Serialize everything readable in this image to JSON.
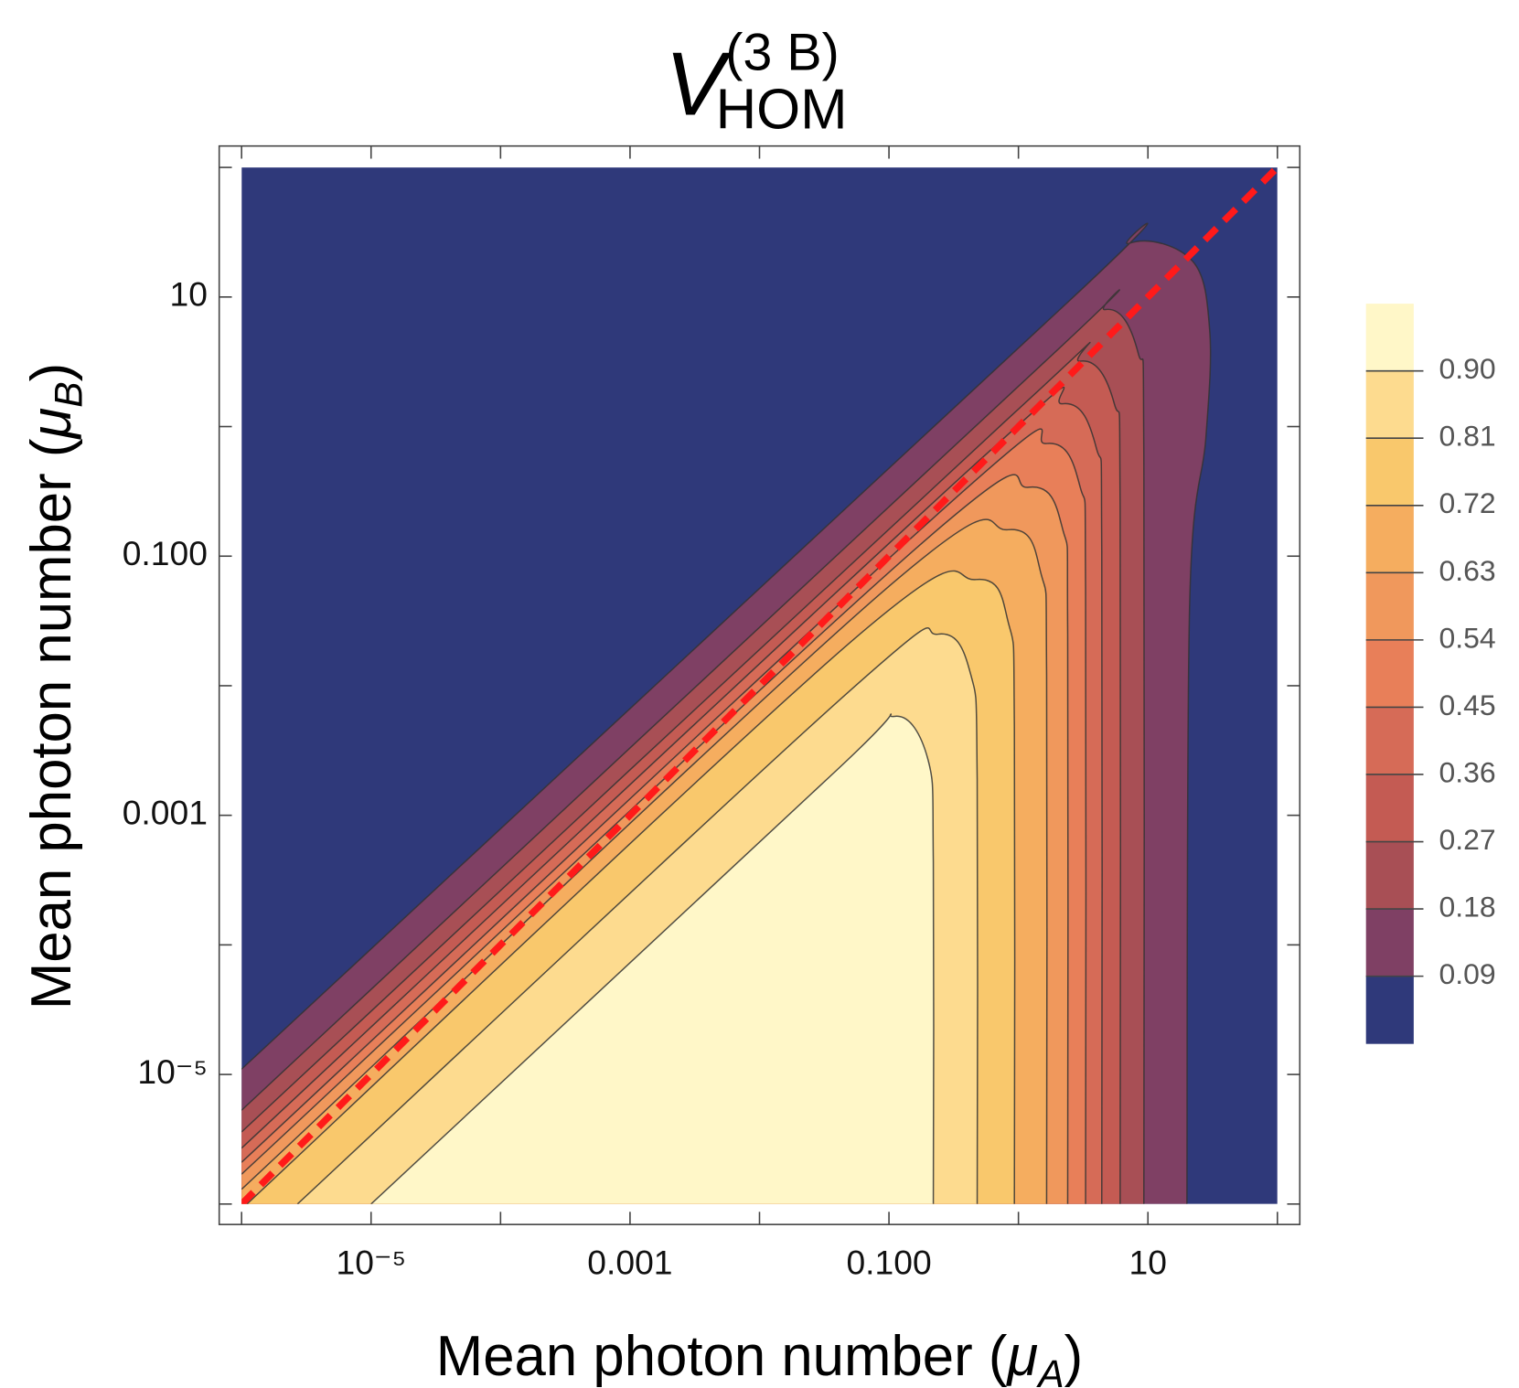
{
  "chart_data": {
    "type": "contour",
    "title": "V",
    "title_sub": "HOM",
    "title_sup": "(3 B)",
    "xlabel": {
      "prefix": "Mean photon number (",
      "symbol": "μ",
      "sub": "A",
      "suffix": ")"
    },
    "ylabel": {
      "prefix": "Mean photon number (",
      "symbol": "μ",
      "sub": "B",
      "suffix": ")"
    },
    "xscale": "log",
    "yscale": "log",
    "xlim": [
      1e-06,
      100
    ],
    "ylim": [
      1e-06,
      100
    ],
    "xticks": [
      {
        "value": 1e-05,
        "label": "10⁻⁵"
      },
      0.001,
      {
        "value": 0.1,
        "label": "0.100"
      },
      10
    ],
    "xminorticks": [
      1e-06,
      0.0001,
      0.01,
      1,
      100
    ],
    "yticks": [
      {
        "value": 1e-05,
        "label": "10⁻⁵"
      },
      0.001,
      {
        "value": 0.1,
        "label": "0.100"
      },
      10
    ],
    "yminorticks": [
      1e-06,
      0.0001,
      0.01,
      1,
      100
    ],
    "zlim": [
      0,
      0.99
    ],
    "zticks": [
      0.09,
      0.18,
      0.27,
      0.36,
      0.45,
      0.54,
      0.63,
      0.72,
      0.81,
      {
        "value": 0.9,
        "label": "0.90"
      }
    ],
    "colors": [
      "#2f397a",
      "#7f4064",
      "#a84f55",
      "#c45b53",
      "#d66b57",
      "#e87f59",
      "#f0985c",
      "#f5ad5f",
      "#f9c86c",
      "#fddb8f",
      "#fff7c8"
    ],
    "contour_line_color": "#333333",
    "contours": [
      {
        "x": [
          1e-06,
          2.4,
          7.2,
          22,
          30,
          28,
          21,
          20
        ],
        "y": [
          1.1e-05,
          9.1,
          26,
          19,
          5.5,
          0.81,
          0.043,
          1e-06
        ]
      },
      {
        "x": [
          1e-06,
          1.4,
          4.7,
          8.4,
          9.3,
          9.3
        ],
        "y": [
          5.3e-06,
          2.8,
          8.0,
          3.7,
          0.59,
          1e-06
        ]
      },
      {
        "x": [
          1e-06,
          0.83,
          3.0,
          5.5,
          6.1,
          6.1
        ],
        "y": [
          3.6e-06,
          1.15,
          3.2,
          1.5,
          0.24,
          1e-06
        ]
      },
      {
        "x": [
          1e-06,
          0.48,
          2.2,
          4.0,
          4.4,
          4.4
        ],
        "y": [
          2.7e-06,
          0.53,
          1.5,
          0.68,
          0.11,
          1e-06
        ]
      },
      {
        "x": [
          1e-06,
          0.3,
          1.65,
          3.0,
          3.3,
          3.3
        ],
        "y": [
          2.1e-06,
          0.26,
          0.74,
          0.34,
          0.055,
          1e-06
        ]
      },
      {
        "x": [
          1e-06,
          0.17,
          1.2,
          2.2,
          2.4,
          2.4
        ],
        "y": [
          1.7e-06,
          0.12,
          0.34,
          0.16,
          0.025,
          1e-06
        ]
      },
      {
        "x": [
          1e-06,
          0.093,
          0.83,
          1.5,
          1.65,
          1.65
        ],
        "y": [
          1.3e-06,
          0.055,
          0.16,
          0.072,
          0.012,
          1e-06
        ]
      },
      {
        "x": [
          1.1e-06,
          0.054,
          0.47,
          0.84,
          0.93,
          0.93
        ],
        "y": [
          1e-06,
          0.023,
          0.066,
          0.03,
          0.0049,
          1e-06
        ]
      },
      {
        "x": [
          2.7e-06,
          0.049,
          0.24,
          0.43,
          0.48,
          0.48
        ],
        "y": [
          1e-06,
          0.009,
          0.025,
          0.012,
          0.0019,
          1e-06
        ]
      },
      {
        "x": [
          1e-05,
          0.037,
          0.11,
          0.2,
          0.22,
          0.22
        ],
        "y": [
          1e-06,
          0.0021,
          0.0058,
          0.0027,
          0.00044,
          1e-06
        ]
      }
    ],
    "series": [
      {
        "x": [
          1e-06,
          100
        ],
        "y": [
          1e-06,
          100
        ],
        "color": "#ff1a1a",
        "style": "dashed"
      }
    ]
  }
}
